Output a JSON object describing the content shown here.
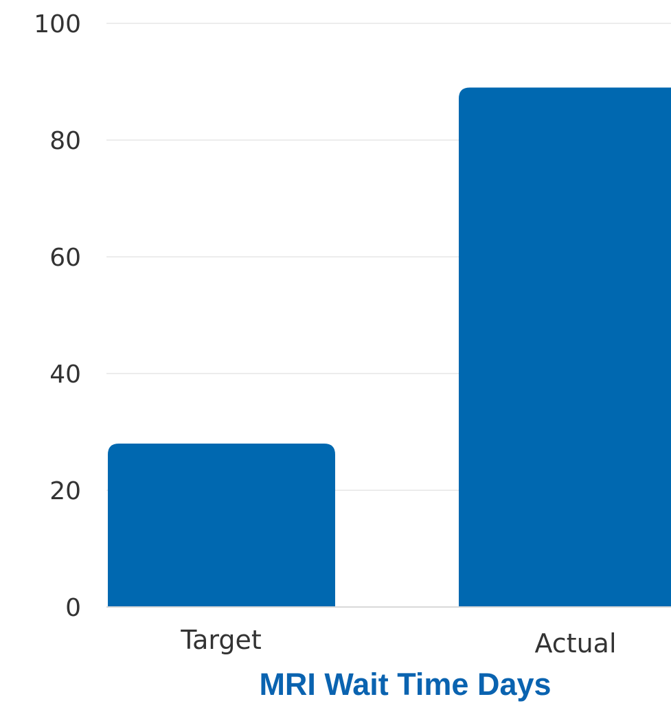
{
  "chart_data": {
    "type": "bar",
    "title": "MRI Wait Time Days",
    "categories": [
      "Target",
      "Actual"
    ],
    "values": [
      28,
      89
    ],
    "ylim": [
      0,
      100
    ],
    "yticks": [
      "0",
      "20",
      "40",
      "60",
      "80",
      "100"
    ],
    "grid": true,
    "bar_color": "#0068B0",
    "grid_color": "#e6e6e6",
    "title_color": "#0a63b0"
  }
}
